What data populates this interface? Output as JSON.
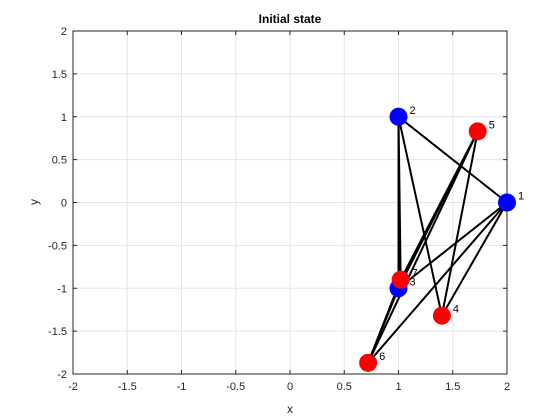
{
  "chart_data": {
    "type": "scatter",
    "title": "Initial state",
    "xlabel": "x",
    "ylabel": "y",
    "xlim": [
      -2,
      2
    ],
    "ylim": [
      -2,
      2
    ],
    "x_ticks": [
      "-2",
      "-1.5",
      "-1",
      "-0.5",
      "0",
      "0.5",
      "1",
      "1.5",
      "2"
    ],
    "y_ticks": [
      "-2",
      "-1.5",
      "-1",
      "-0.5",
      "0",
      "0.5",
      "1",
      "1.5",
      "2"
    ],
    "grid": true,
    "nodes": [
      {
        "id": "1",
        "x": 2.0,
        "y": 0.0,
        "color": "#0000ff"
      },
      {
        "id": "2",
        "x": 1.0,
        "y": 1.0,
        "color": "#0000ff"
      },
      {
        "id": "3",
        "x": 1.0,
        "y": -1.0,
        "color": "#0000ff"
      },
      {
        "id": "4",
        "x": 1.4,
        "y": -1.32,
        "color": "#ff0000"
      },
      {
        "id": "5",
        "x": 1.73,
        "y": 0.83,
        "color": "#ff0000"
      },
      {
        "id": "6",
        "x": 0.72,
        "y": -1.87,
        "color": "#ff0000"
      },
      {
        "id": "7",
        "x": 1.02,
        "y": -0.9,
        "color": "#ff0000"
      }
    ],
    "edges": [
      [
        "1",
        "2"
      ],
      [
        "1",
        "3"
      ],
      [
        "1",
        "4"
      ],
      [
        "1",
        "6"
      ],
      [
        "2",
        "7"
      ],
      [
        "2",
        "3"
      ],
      [
        "2",
        "4"
      ],
      [
        "5",
        "7"
      ],
      [
        "5",
        "3"
      ],
      [
        "5",
        "4"
      ],
      [
        "5",
        "6"
      ],
      [
        "7",
        "6"
      ],
      [
        "3",
        "6"
      ]
    ],
    "colors": {
      "blue": "#0000ff",
      "red": "#ff0000",
      "edge": "#000000",
      "grid": "#e6e6e6",
      "axis": "#262626"
    }
  }
}
